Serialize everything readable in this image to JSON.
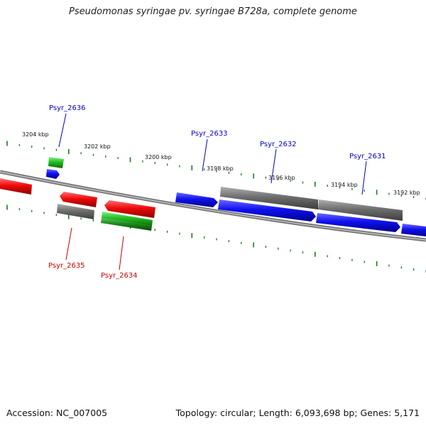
{
  "title": "Pseudomonas syringae pv. syringae B728a, complete genome",
  "footer": {
    "accession": "Accession: NC_007005",
    "summary": "Topology: circular; Length: 6,093,698 bp; Genes: 5,171"
  },
  "scale_labels": [
    "3204 kbp",
    "3202 kbp",
    "3200 kbp",
    "3198 kbp",
    "3196 kbp",
    "3194 kbp",
    "3192 kbp"
  ],
  "genes": [
    {
      "name": "Psyr_2636",
      "strand": "forward",
      "color": "#0000cc"
    },
    {
      "name": "Psyr_2635",
      "strand": "reverse",
      "color": "#cc0000"
    },
    {
      "name": "Psyr_2634",
      "strand": "reverse",
      "color": "#cc0000"
    },
    {
      "name": "Psyr_2633",
      "strand": "forward",
      "color": "#0000cc"
    },
    {
      "name": "Psyr_2632",
      "strand": "forward",
      "color": "#0000cc"
    },
    {
      "name": "Psyr_2631",
      "strand": "forward",
      "color": "#0000cc"
    }
  ],
  "colors": {
    "forward_cds": "#1a1aee",
    "reverse_cds": "#ee1111",
    "gene_track": "#707070",
    "rna": "#22cc22",
    "tick": "#1a7a1a",
    "backbone": "#808080"
  }
}
